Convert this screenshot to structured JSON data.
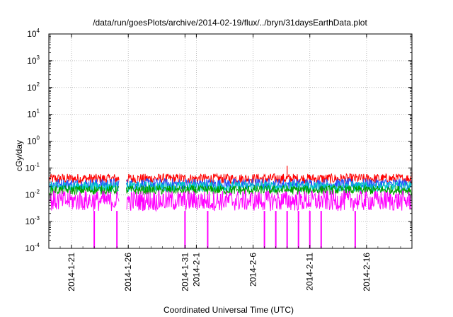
{
  "chart_data": {
    "type": "line",
    "title": "/data/run/goesPlots/archive/2014-02-19/flux/../bryn/31daysEarthData.plot",
    "xlabel": "Coordinated Universal Time (UTC)",
    "ylabel": "cGy/day",
    "y_scale": "log",
    "ylim": [
      0.0001,
      10000
    ],
    "y_ticks": [
      {
        "value": 0.0001,
        "base": "10",
        "exp": "-4"
      },
      {
        "value": 0.001,
        "base": "10",
        "exp": "-3"
      },
      {
        "value": 0.01,
        "base": "10",
        "exp": "-2"
      },
      {
        "value": 0.1,
        "base": "10",
        "exp": "-1"
      },
      {
        "value": 1,
        "base": "10",
        "exp": "0"
      },
      {
        "value": 10,
        "base": "10",
        "exp": "1"
      },
      {
        "value": 100,
        "base": "10",
        "exp": "2"
      },
      {
        "value": 1000,
        "base": "10",
        "exp": "3"
      },
      {
        "value": 10000,
        "base": "10",
        "exp": "4"
      }
    ],
    "xlim": [
      "2014-01-19",
      "2014-02-20"
    ],
    "x_ticks": [
      "2014-1-21",
      "2014-1-26",
      "2014-1-31",
      "2014-2-1",
      "2014-2-6",
      "2014-2-11",
      "2014-2-16"
    ],
    "x_tick_dates": [
      "2014-01-21",
      "2014-01-26",
      "2014-01-31",
      "2014-02-01",
      "2014-02-06",
      "2014-02-11",
      "2014-02-16"
    ],
    "grid": true,
    "legend": "none",
    "data_gap": [
      "2014-01-25",
      "2014-01-26"
    ],
    "series": [
      {
        "color": "#ff0000",
        "typical": 0.04,
        "min": 0.025,
        "max": 0.06,
        "peaks": [
          {
            "x": "2014-02-09",
            "y": 0.12
          },
          {
            "x": "2014-02-20",
            "y": 0.07
          }
        ]
      },
      {
        "color": "#2050ff",
        "typical": 0.025,
        "min": 0.015,
        "max": 0.04
      },
      {
        "color": "#00c8c8",
        "typical": 0.02,
        "min": 0.012,
        "max": 0.03
      },
      {
        "color": "#00a000",
        "typical": 0.015,
        "min": 0.01,
        "max": 0.022
      },
      {
        "color": "#ff00ff",
        "typical": 0.006,
        "min": 0.0025,
        "max": 0.015,
        "dropouts": [
          "2014-01-23",
          "2014-01-25",
          "2014-01-31",
          "2014-02-02",
          "2014-02-07",
          "2014-02-08",
          "2014-02-09",
          "2014-02-10",
          "2014-02-11",
          "2014-02-12",
          "2014-02-15"
        ]
      }
    ]
  }
}
